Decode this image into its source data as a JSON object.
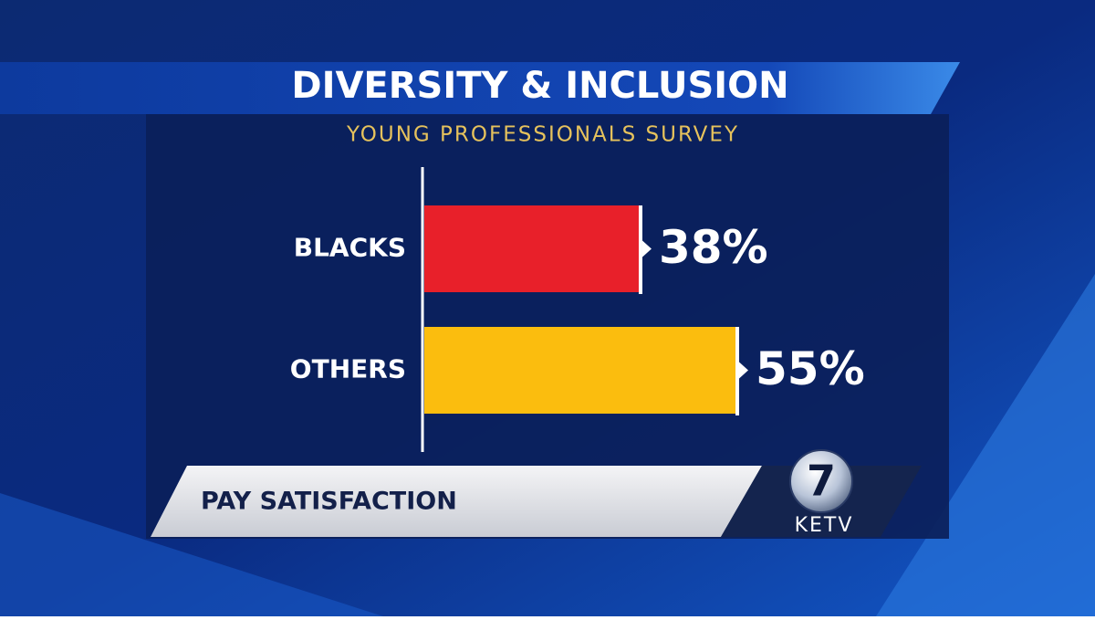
{
  "chart_data": {
    "type": "hbar",
    "title": "DIVERSITY & INCLUSION",
    "subtitle": "YOUNG PROFESSIONALS SURVEY",
    "categories": [
      "BLACKS",
      "OTHERS"
    ],
    "values": [
      38,
      55
    ],
    "value_labels": [
      "38%",
      "55%"
    ],
    "colors": [
      "#e8202a",
      "#fbbd0e"
    ]
  },
  "lower_third": "PAY SATISFACTION",
  "logo": {
    "number": "7",
    "station": "KETV"
  }
}
